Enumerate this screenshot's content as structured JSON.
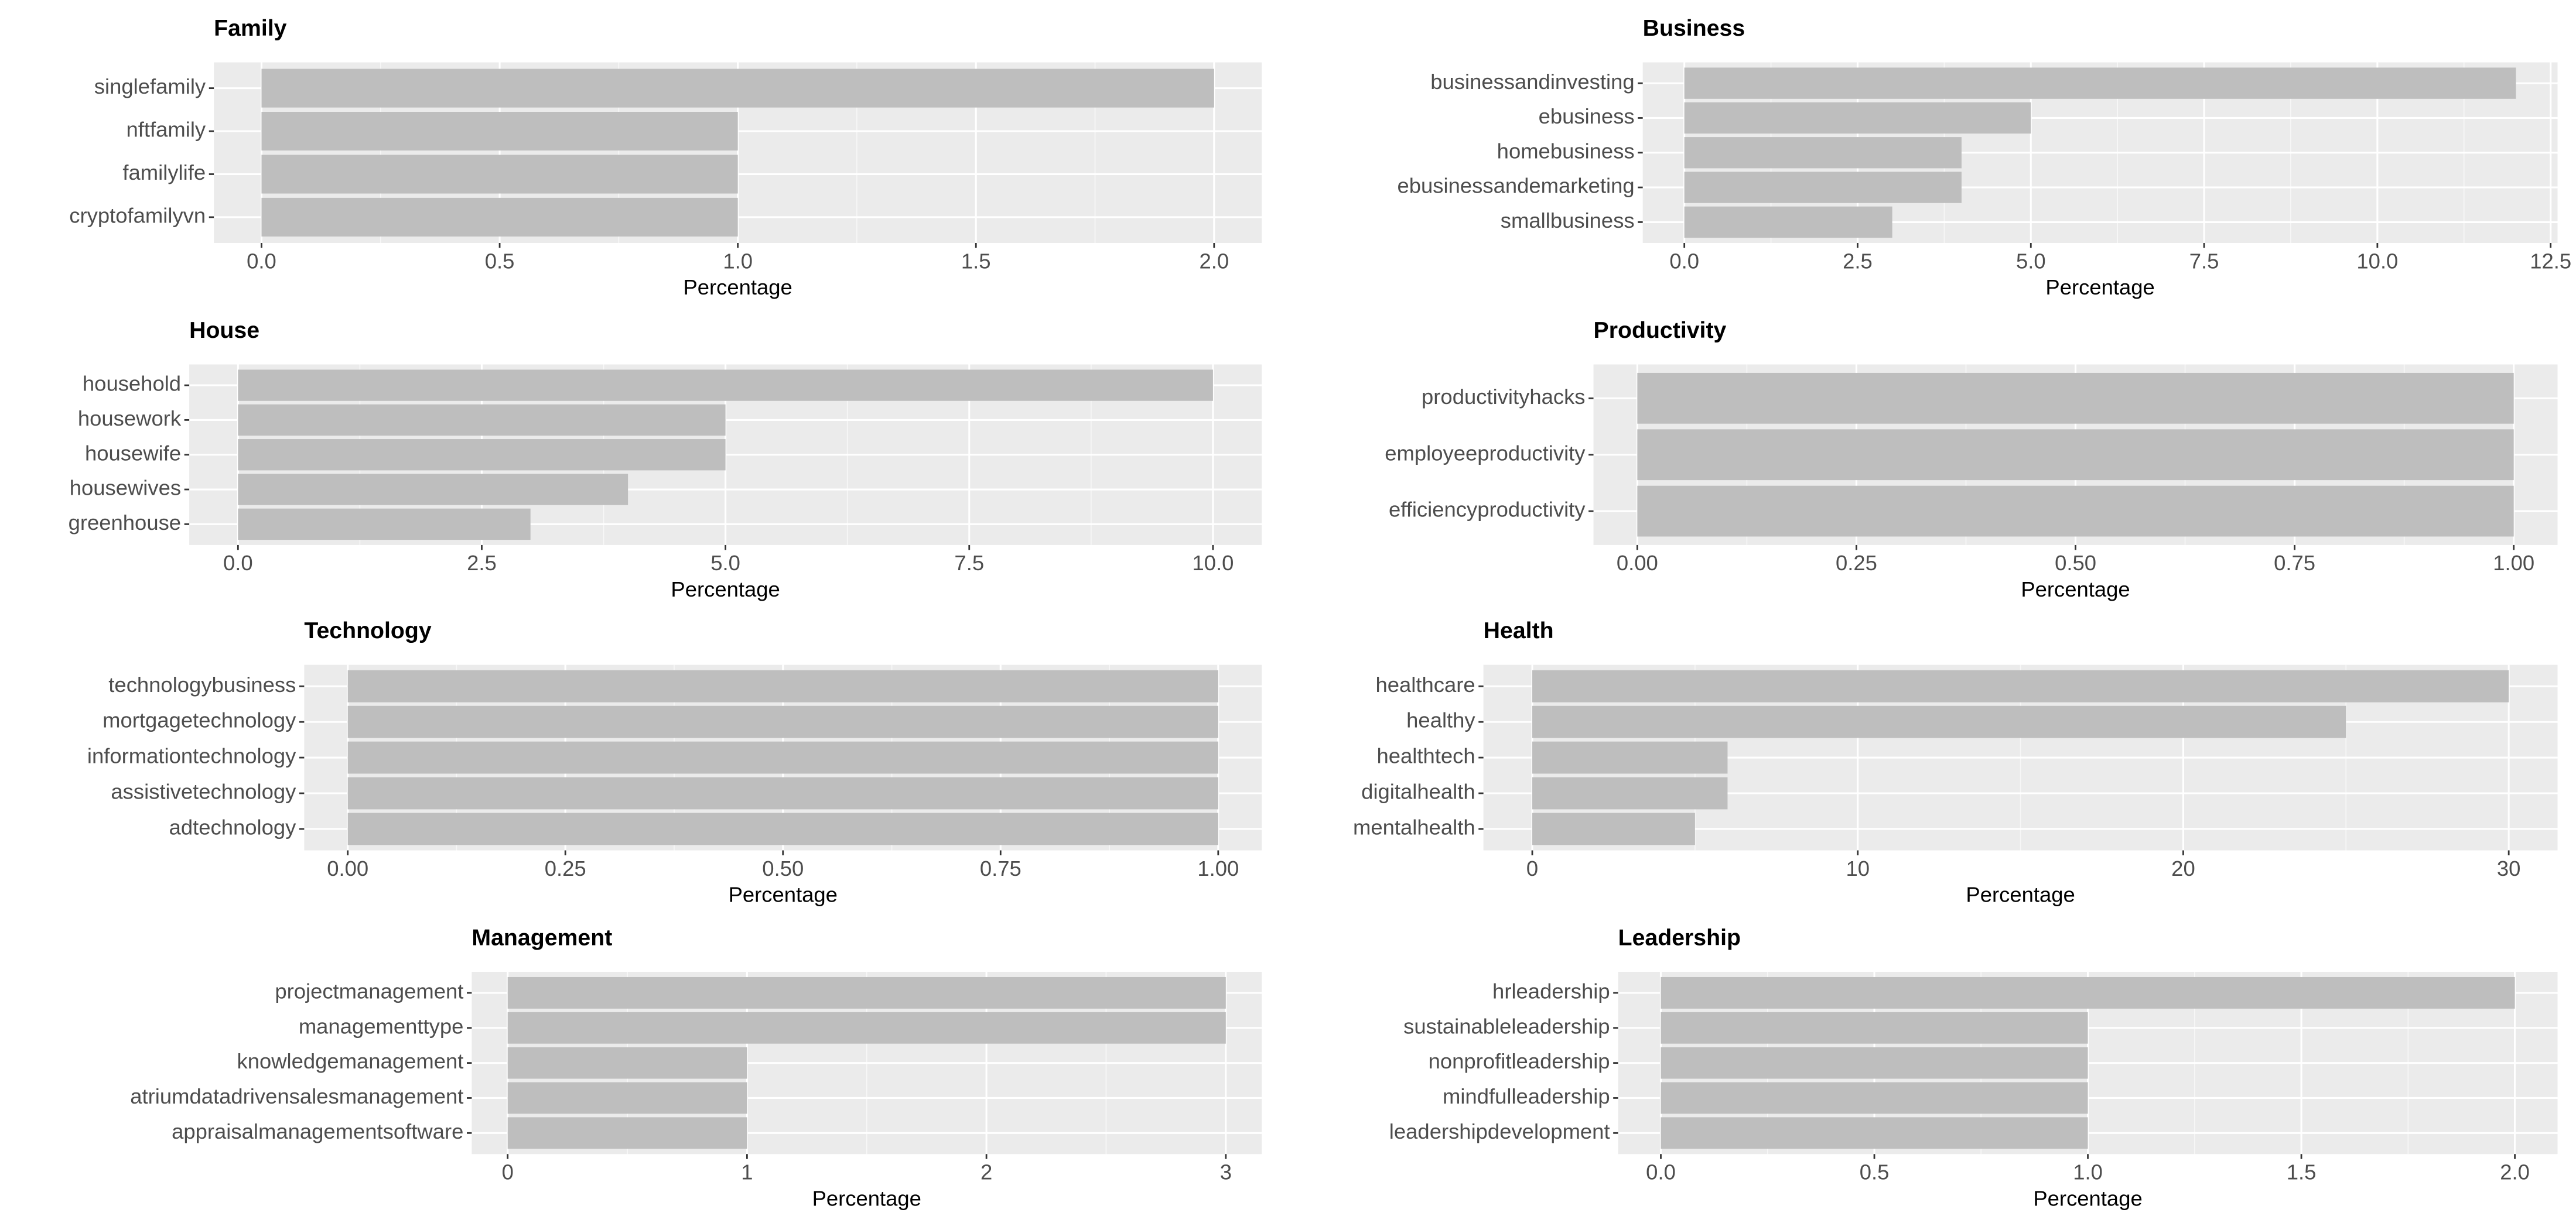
{
  "chart_data": [
    {
      "type": "barh",
      "title": "Family",
      "xlabel": "Percentage",
      "color": "#bebebe",
      "grid": true,
      "categories": [
        "singlefamily",
        "nftfamily",
        "familylife",
        "cryptofamilyvn"
      ],
      "values": [
        2,
        1,
        1,
        1
      ],
      "xlim": [
        -0.1,
        2.1
      ],
      "xticks": [
        {
          "value": 0,
          "label": "0.0"
        },
        0.5,
        {
          "value": 1,
          "label": "1.0"
        },
        1.5,
        {
          "value": 2,
          "label": "2.0"
        }
      ]
    },
    {
      "type": "barh",
      "title": "Business",
      "xlabel": "Percentage",
      "color": "#bebebe",
      "grid": true,
      "categories": [
        "businessandinvesting",
        "ebusiness",
        "homebusiness",
        "ebusinessandemarketing",
        "smallbusiness"
      ],
      "values": [
        12,
        5,
        4,
        4,
        3
      ],
      "xlim": [
        -0.6,
        12.6
      ],
      "xticks": [
        {
          "value": 0,
          "label": "0.0"
        },
        2.5,
        {
          "value": 5,
          "label": "5.0"
        },
        7.5,
        {
          "value": 10,
          "label": "10.0"
        },
        12.5
      ]
    },
    {
      "type": "barh",
      "title": "House",
      "xlabel": "Percentage",
      "color": "#bebebe",
      "grid": true,
      "categories": [
        "household",
        "housework",
        "housewife",
        "housewives",
        "greenhouse"
      ],
      "values": [
        10,
        5,
        5,
        4,
        3
      ],
      "xlim": [
        -0.5,
        10.5
      ],
      "xticks": [
        {
          "value": 0,
          "label": "0.0"
        },
        2.5,
        {
          "value": 5,
          "label": "5.0"
        },
        7.5,
        {
          "value": 10,
          "label": "10.0"
        }
      ]
    },
    {
      "type": "barh",
      "title": "Productivity",
      "xlabel": "Percentage",
      "color": "#bebebe",
      "grid": true,
      "categories": [
        "productivityhacks",
        "employeeproductivity",
        "efficiencyproductivity"
      ],
      "values": [
        1,
        1,
        1
      ],
      "xlim": [
        -0.05,
        1.05
      ],
      "xticks": [
        {
          "value": 0,
          "label": "0.00"
        },
        0.25,
        {
          "value": 0.5,
          "label": "0.50"
        },
        0.75,
        {
          "value": 1,
          "label": "1.00"
        }
      ]
    },
    {
      "type": "barh",
      "title": "Technology",
      "xlabel": "Percentage",
      "color": "#bebebe",
      "grid": true,
      "categories": [
        "technologybusiness",
        "mortgagetechnology",
        "informationtechnology",
        "assistivetechnology",
        "adtechnology"
      ],
      "values": [
        1,
        1,
        1,
        1,
        1
      ],
      "xlim": [
        -0.05,
        1.05
      ],
      "xticks": [
        {
          "value": 0,
          "label": "0.00"
        },
        0.25,
        {
          "value": 0.5,
          "label": "0.50"
        },
        0.75,
        {
          "value": 1,
          "label": "1.00"
        }
      ]
    },
    {
      "type": "barh",
      "title": "Health",
      "xlabel": "Percentage",
      "color": "#bebebe",
      "grid": true,
      "categories": [
        "healthcare",
        "healthy",
        "healthtech",
        "digitalhealth",
        "mentalhealth"
      ],
      "values": [
        30,
        25,
        6,
        6,
        5
      ],
      "xlim": [
        -1.5,
        31.5
      ],
      "xticks": [
        0,
        10,
        20,
        30
      ]
    },
    {
      "type": "barh",
      "title": "Management",
      "xlabel": "Percentage",
      "color": "#bebebe",
      "grid": true,
      "categories": [
        "projectmanagement",
        "managementtype",
        "knowledgemanagement",
        "atriumdatadrivensalesmanagement",
        "appraisalmanagementsoftware"
      ],
      "values": [
        3,
        3,
        1,
        1,
        1
      ],
      "xlim": [
        -0.15,
        3.15
      ],
      "xticks": [
        0,
        1,
        2,
        3
      ]
    },
    {
      "type": "barh",
      "title": "Leadership",
      "xlabel": "Percentage",
      "color": "#bebebe",
      "grid": true,
      "categories": [
        "hrleadership",
        "sustainableleadership",
        "nonprofitleadership",
        "mindfulleadership",
        "leadershipdevelopment"
      ],
      "values": [
        2,
        1,
        1,
        1,
        1
      ],
      "xlim": [
        -0.1,
        2.1
      ],
      "xticks": [
        {
          "value": 0,
          "label": "0.0"
        },
        0.5,
        {
          "value": 1,
          "label": "1.0"
        },
        1.5,
        {
          "value": 2,
          "label": "2.0"
        }
      ]
    }
  ]
}
